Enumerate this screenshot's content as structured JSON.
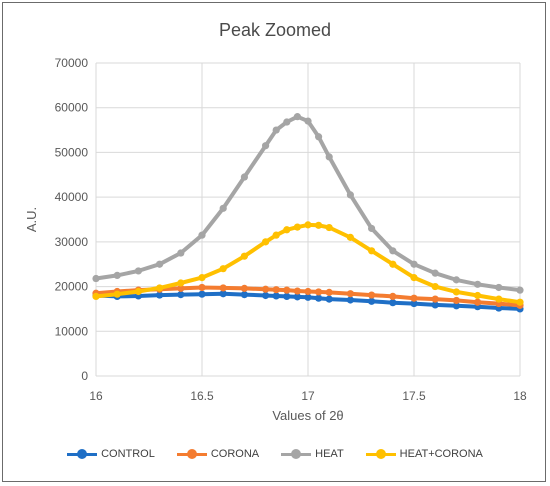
{
  "chart_data": {
    "type": "scatter",
    "title": "Peak Zoomed",
    "xlabel": "Values of 2θ",
    "ylabel": "A.U.",
    "xlim": [
      16,
      18
    ],
    "ylim": [
      0,
      70000
    ],
    "x_ticks": [
      "16",
      "16.5",
      "17",
      "17.5",
      "18"
    ],
    "y_ticks": [
      "0",
      "10000",
      "20000",
      "30000",
      "40000",
      "50000",
      "60000",
      "70000"
    ],
    "grid": true,
    "legend_position": "bottom",
    "x": [
      16.0,
      16.1,
      16.2,
      16.3,
      16.4,
      16.5,
      16.6,
      16.7,
      16.8,
      16.85,
      16.9,
      16.95,
      17.0,
      17.05,
      17.1,
      17.2,
      17.3,
      17.4,
      17.5,
      17.6,
      17.7,
      17.8,
      17.9,
      18.0
    ],
    "series": [
      {
        "name": "CONTROL",
        "color": "#1f6fc6",
        "values": [
          18000,
          17800,
          17900,
          18100,
          18200,
          18300,
          18400,
          18200,
          18000,
          17900,
          17800,
          17700,
          17600,
          17400,
          17200,
          17000,
          16700,
          16400,
          16200,
          15900,
          15700,
          15500,
          15200,
          15000
        ]
      },
      {
        "name": "CORONA",
        "color": "#f47c30",
        "values": [
          18500,
          18900,
          19200,
          19400,
          19600,
          19800,
          19700,
          19600,
          19400,
          19300,
          19200,
          19000,
          18900,
          18800,
          18700,
          18400,
          18100,
          17800,
          17400,
          17200,
          16900,
          16500,
          16200,
          15800
        ]
      },
      {
        "name": "HEAT",
        "color": "#a5a5a5",
        "values": [
          21800,
          22500,
          23500,
          25000,
          27500,
          31500,
          37500,
          44500,
          51500,
          55000,
          56800,
          58000,
          57000,
          53500,
          49000,
          40500,
          33000,
          28000,
          25000,
          23000,
          21500,
          20500,
          19800,
          19200
        ]
      },
      {
        "name": "HEAT+CORONA",
        "color": "#ffc000",
        "values": [
          17800,
          18300,
          18900,
          19700,
          20800,
          22000,
          24000,
          26800,
          30000,
          31500,
          32700,
          33300,
          33800,
          33700,
          33200,
          31000,
          28000,
          25000,
          22000,
          20000,
          18800,
          18000,
          17200,
          16500
        ]
      }
    ]
  }
}
